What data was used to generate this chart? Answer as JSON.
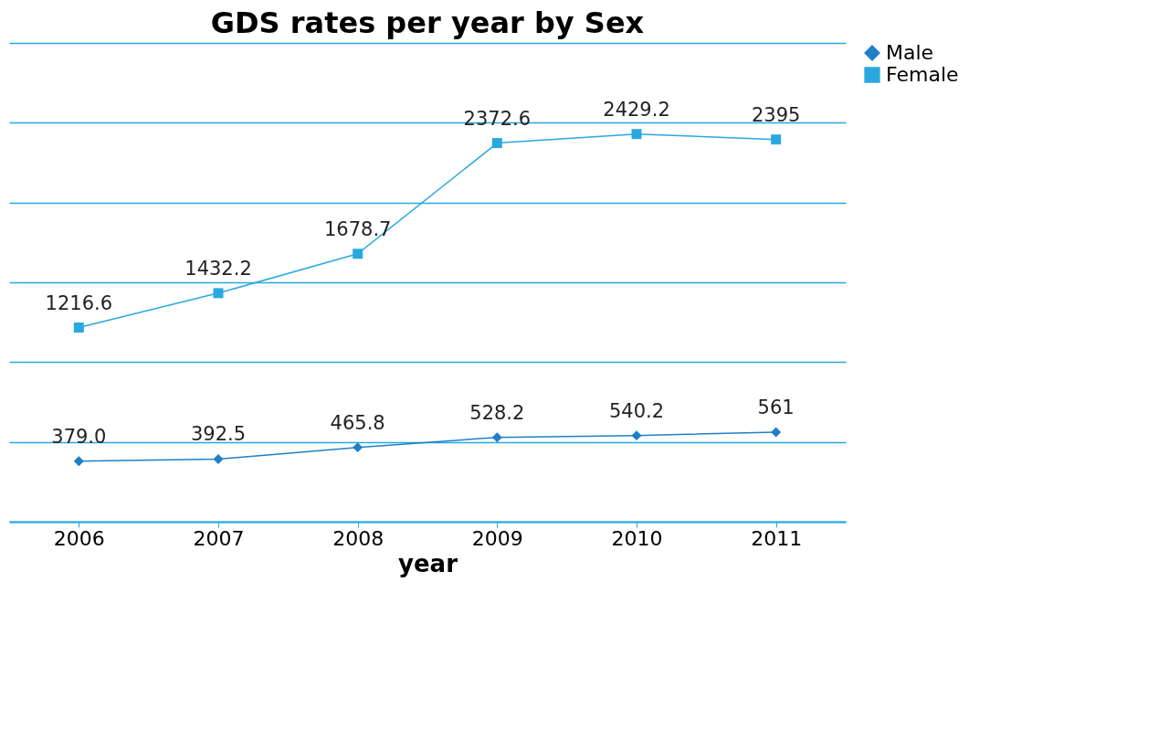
{
  "chart_data": {
    "type": "line",
    "title": "GDS rates per year by Sex",
    "xlabel": "year",
    "categories": [
      "2006",
      "2007",
      "2008",
      "2009",
      "2010",
      "2011"
    ],
    "series": [
      {
        "name": "Male",
        "color": "#1f7fc8",
        "marker": "diamond",
        "values": [
          379.0,
          392.5,
          465.8,
          528.2,
          540.2,
          561
        ],
        "value_labels": [
          "379.0",
          "392.5",
          "465.8",
          "528.2",
          "540.2",
          "561"
        ]
      },
      {
        "name": "Female",
        "color": "#29a8e0",
        "marker": "square",
        "values": [
          1216.6,
          1432.2,
          1678.7,
          2372.6,
          2429.2,
          2395
        ],
        "value_labels": [
          "1216.6",
          "1432.2",
          "1678.7",
          "2372.6",
          "2429.2",
          "2395"
        ]
      }
    ],
    "ylim": [
      0,
      3000
    ],
    "yticks": [
      {
        "value": 0,
        "label": null
      },
      {
        "value": 500,
        "label": null
      },
      {
        "value": 1000,
        "label": null
      },
      {
        "value": 1500,
        "label": null
      },
      {
        "value": 2000,
        "label": null
      },
      {
        "value": 2500,
        "label": null
      },
      {
        "value": 3000,
        "label": null
      }
    ],
    "grid": "y",
    "legend": "right",
    "tick_labels": "x",
    "line_style": "solid"
  }
}
